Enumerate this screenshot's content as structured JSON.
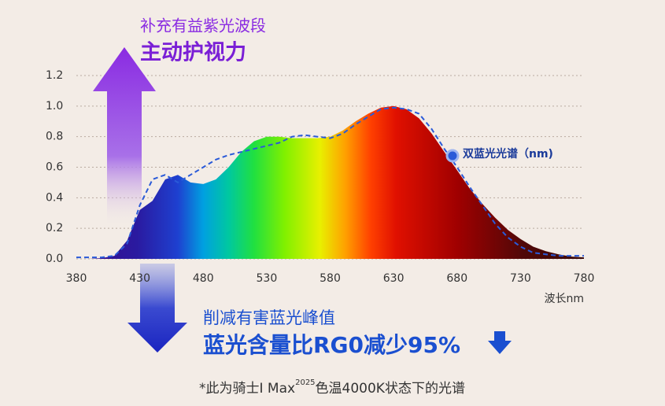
{
  "chart_data": {
    "type": "area",
    "title": "补充有益紫光波段",
    "subtitle": "主动护视力",
    "annotations": [
      "削减有害蓝光峰值",
      "蓝光含量比RG0减少95%"
    ],
    "footnote": [
      "*此为骑士I Max",
      "2025",
      "色温4000K状态下的光谱"
    ],
    "xlabel": "波长nm",
    "x": [
      380,
      390,
      400,
      410,
      420,
      430,
      440,
      450,
      460,
      470,
      480,
      490,
      500,
      510,
      520,
      530,
      540,
      550,
      560,
      570,
      580,
      590,
      600,
      610,
      620,
      630,
      640,
      650,
      660,
      670,
      680,
      690,
      700,
      710,
      720,
      730,
      740,
      750,
      760,
      770,
      780
    ],
    "series": [
      {
        "fill": true,
        "values": [
          0,
          0,
          0.005,
          0.02,
          0.12,
          0.32,
          0.38,
          0.52,
          0.55,
          0.5,
          0.49,
          0.52,
          0.6,
          0.7,
          0.77,
          0.8,
          0.8,
          0.79,
          0.79,
          0.79,
          0.8,
          0.84,
          0.9,
          0.95,
          0.99,
          1.0,
          0.98,
          0.92,
          0.82,
          0.7,
          0.58,
          0.46,
          0.36,
          0.27,
          0.19,
          0.13,
          0.08,
          0.05,
          0.03,
          0.015,
          0.01
        ]
      },
      {
        "name": "双蓝光光谱（nm)",
        "color": "#2a5ad8",
        "dashed": true,
        "values": [
          0.01,
          0.01,
          0.01,
          0.02,
          0.1,
          0.35,
          0.52,
          0.55,
          0.5,
          0.55,
          0.6,
          0.65,
          0.68,
          0.7,
          0.72,
          0.74,
          0.76,
          0.8,
          0.81,
          0.8,
          0.79,
          0.82,
          0.88,
          0.93,
          0.98,
          0.99,
          0.98,
          0.95,
          0.85,
          0.72,
          0.6,
          0.47,
          0.35,
          0.23,
          0.14,
          0.08,
          0.04,
          0.03,
          0.02,
          0.02,
          0.02
        ]
      }
    ],
    "xlim": [
      380,
      780
    ],
    "xticks": [
      380,
      430,
      480,
      530,
      580,
      630,
      680,
      730,
      780
    ],
    "ylim": [
      0,
      1.2
    ],
    "yticks": [
      {
        "value": 0,
        "label": "0.0"
      },
      0.2,
      0.4,
      0.6,
      0.8,
      {
        "value": 1,
        "label": "1.0"
      },
      1.2
    ],
    "grid": true
  }
}
